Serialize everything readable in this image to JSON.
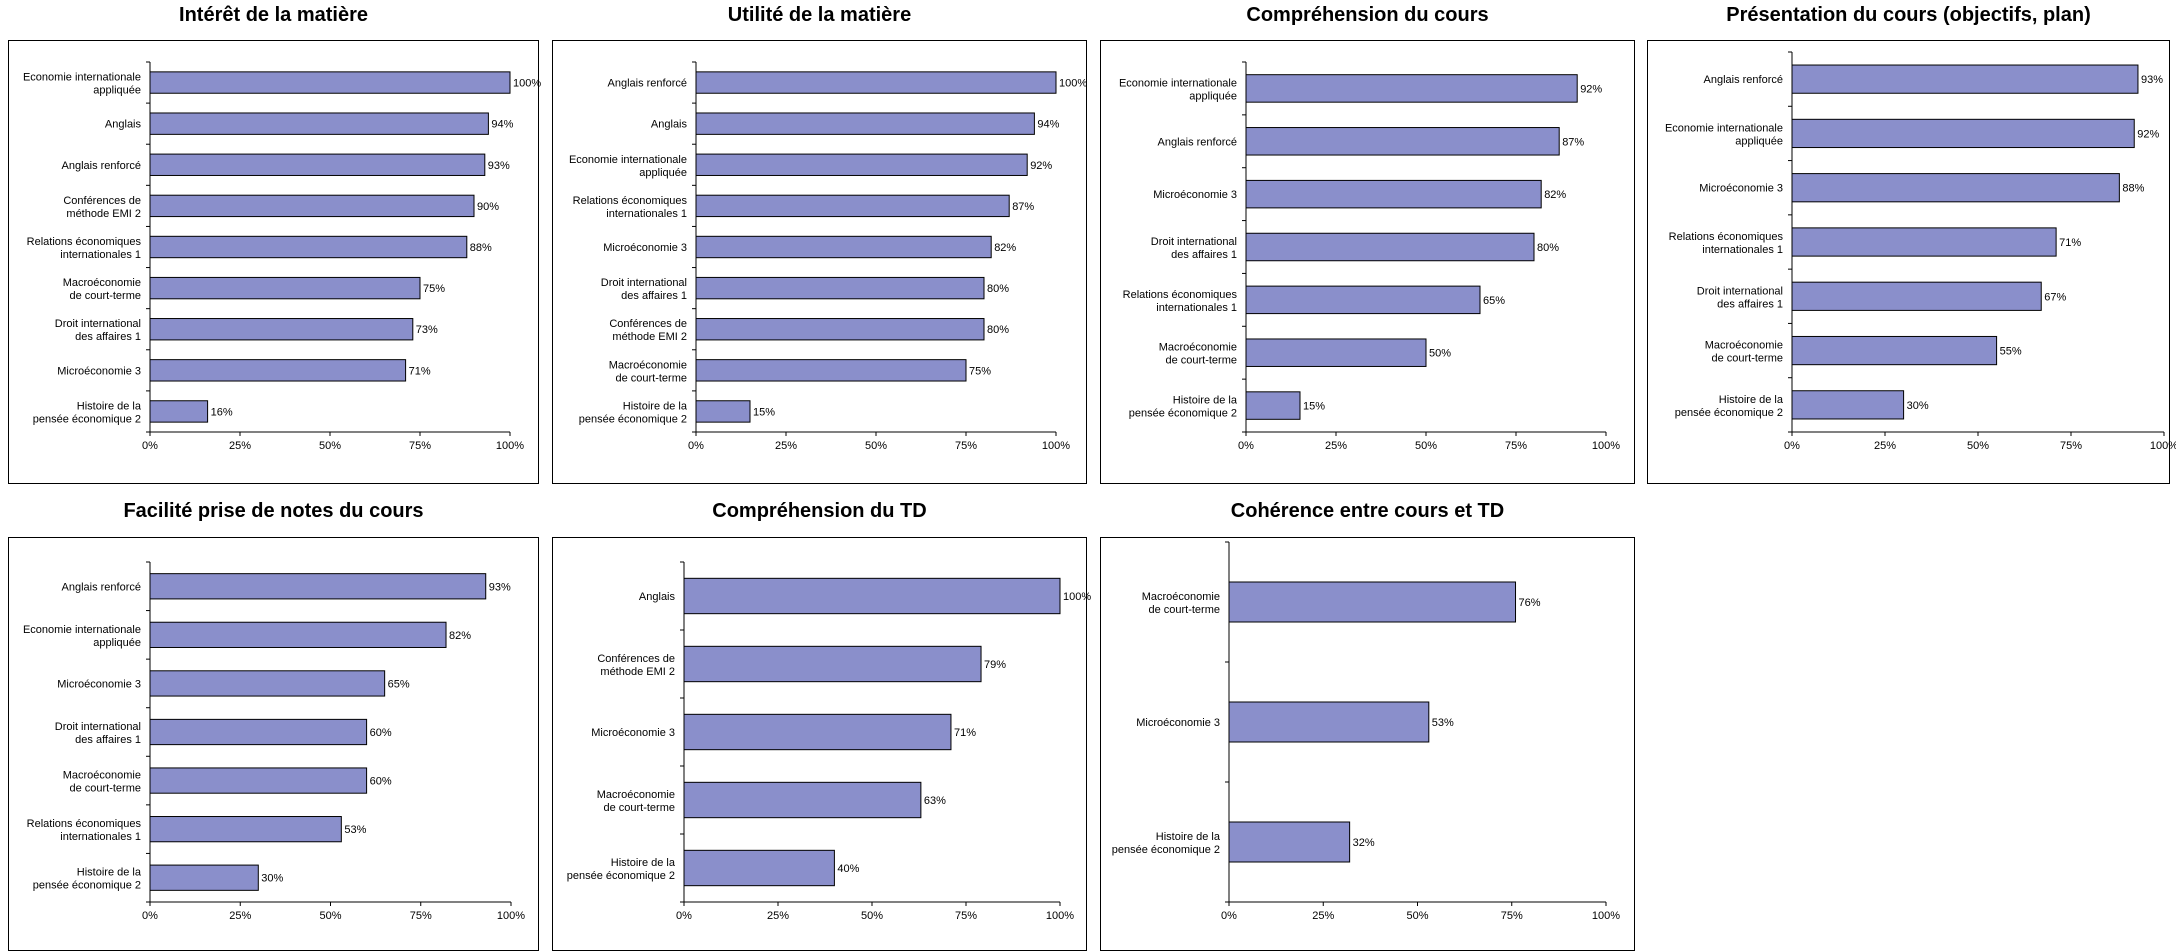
{
  "bar_color": "#8a8fcb",
  "chart_data": [
    {
      "type": "bar",
      "orientation": "horizontal",
      "title": "Intérêt de la matière",
      "categories": [
        "Economie internationale appliquée",
        "Anglais",
        "Anglais renforcé",
        "Conférences de méthode EMI 2",
        "Relations économiques internationales 1",
        "Macroéconomie de court-terme",
        "Droit international des affaires 1",
        "Microéconomie 3",
        "Histoire de la pensée économique 2"
      ],
      "values": [
        100,
        94,
        93,
        90,
        88,
        75,
        73,
        71,
        16
      ],
      "value_labels": [
        "100%",
        "94%",
        "93%",
        "90%",
        "88%",
        "75%",
        "73%",
        "71%",
        "16%"
      ],
      "xlim": [
        0,
        100
      ],
      "ticks": [
        "0%",
        "25%",
        "50%",
        "75%",
        "100%"
      ]
    },
    {
      "type": "bar",
      "orientation": "horizontal",
      "title": "Utilité de la matière",
      "categories": [
        "Anglais renforcé",
        "Anglais",
        "Economie internationale appliquée",
        "Relations économiques internationales 1",
        "Microéconomie 3",
        "Droit international des affaires 1",
        "Conférences de méthode EMI 2",
        "Macroéconomie de court-terme",
        "Histoire de la pensée économique 2"
      ],
      "values": [
        100,
        94,
        92,
        87,
        82,
        80,
        80,
        75,
        15
      ],
      "value_labels": [
        "100%",
        "94%",
        "92%",
        "87%",
        "82%",
        "80%",
        "80%",
        "75%",
        "15%"
      ],
      "xlim": [
        0,
        100
      ],
      "ticks": [
        "0%",
        "25%",
        "50%",
        "75%",
        "100%"
      ]
    },
    {
      "type": "bar",
      "orientation": "horizontal",
      "title": "Compréhension du cours",
      "categories": [
        "Economie internationale appliquée",
        "Anglais renforcé",
        "Microéconomie 3",
        "Droit international des affaires 1",
        "Relations économiques internationales 1",
        "Macroéconomie de court-terme",
        "Histoire de la pensée économique 2"
      ],
      "values": [
        92,
        87,
        82,
        80,
        65,
        50,
        15
      ],
      "value_labels": [
        "92%",
        "87%",
        "82%",
        "80%",
        "65%",
        "50%",
        "15%"
      ],
      "xlim": [
        0,
        100
      ],
      "ticks": [
        "0%",
        "25%",
        "50%",
        "75%",
        "100%"
      ]
    },
    {
      "type": "bar",
      "orientation": "horizontal",
      "title": "Présentation du cours (objectifs, plan)",
      "categories": [
        "Anglais renforcé",
        "Economie internationale appliquée",
        "Microéconomie 3",
        "Relations économiques internationales 1",
        "Droit international des affaires 1",
        "Macroéconomie de court-terme",
        "Histoire de la pensée économique 2"
      ],
      "values": [
        93,
        92,
        88,
        71,
        67,
        55,
        30
      ],
      "value_labels": [
        "93%",
        "92%",
        "88%",
        "71%",
        "67%",
        "55%",
        "30%"
      ],
      "xlim": [
        0,
        100
      ],
      "ticks": [
        "0%",
        "25%",
        "50%",
        "75%",
        "100%"
      ]
    },
    {
      "type": "bar",
      "orientation": "horizontal",
      "title": "Facilité prise de notes du cours",
      "categories": [
        "Anglais renforcé",
        "Economie internationale appliquée",
        "Microéconomie 3",
        "Droit international des affaires 1",
        "Macroéconomie de court-terme",
        "Relations économiques internationales 1",
        "Histoire de la pensée économique 2"
      ],
      "values": [
        93,
        82,
        65,
        60,
        60,
        53,
        30
      ],
      "value_labels": [
        "93%",
        "82%",
        "65%",
        "60%",
        "60%",
        "53%",
        "30%"
      ],
      "xlim": [
        0,
        100
      ],
      "ticks": [
        "0%",
        "25%",
        "50%",
        "75%",
        "100%"
      ]
    },
    {
      "type": "bar",
      "orientation": "horizontal",
      "title": "Compréhension du TD",
      "categories": [
        "Anglais",
        "Conférences de méthode EMI 2",
        "Microéconomie 3",
        "Macroéconomie de court-terme",
        "Histoire de la pensée économique 2"
      ],
      "values": [
        100,
        79,
        71,
        63,
        40
      ],
      "value_labels": [
        "100%",
        "79%",
        "71%",
        "63%",
        "40%"
      ],
      "xlim": [
        0,
        100
      ],
      "ticks": [
        "0%",
        "25%",
        "50%",
        "75%",
        "100%"
      ]
    },
    {
      "type": "bar",
      "orientation": "horizontal",
      "title": "Cohérence entre cours et TD",
      "categories": [
        "Macroéconomie de court-terme",
        "Microéconomie 3",
        "Histoire de la pensée économique 2"
      ],
      "values": [
        76,
        53,
        32
      ],
      "value_labels": [
        "76%",
        "53%",
        "32%"
      ],
      "xlim": [
        0,
        100
      ],
      "ticks": [
        "0%",
        "25%",
        "50%",
        "75%",
        "100%"
      ]
    }
  ]
}
